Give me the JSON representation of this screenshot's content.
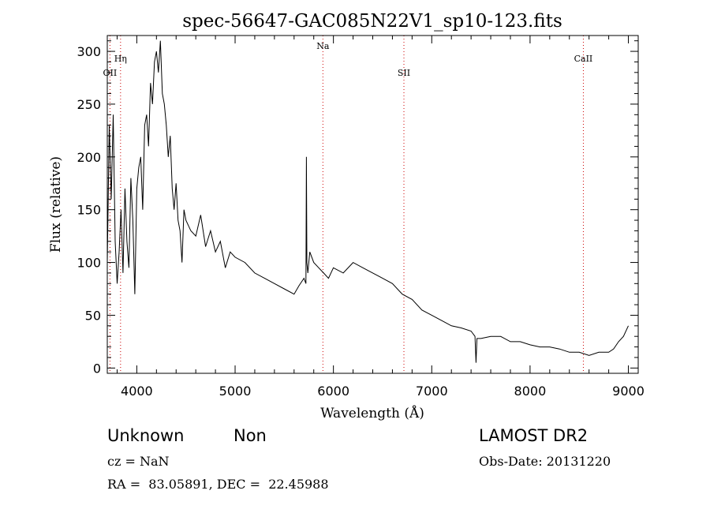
{
  "chart_data": {
    "type": "line",
    "title": "spec-56647-GAC085N22V1_sp10-123.fits",
    "xlabel": "Wavelength (Å)",
    "ylabel": "Flux (relative)",
    "xlim": [
      3700,
      9100
    ],
    "ylim": [
      -5,
      315
    ],
    "xticks": [
      4000,
      5000,
      6000,
      7000,
      8000,
      9000
    ],
    "yticks": [
      0,
      50,
      100,
      150,
      200,
      250,
      300
    ],
    "xtick_labels": [
      "4000",
      "5000",
      "6000",
      "7000",
      "8000",
      "9000"
    ],
    "ytick_labels": [
      "0",
      "50",
      "100",
      "150",
      "200",
      "250",
      "300"
    ],
    "grid": false,
    "line_color": "#000000",
    "marker_color": "#cc0000",
    "lines": [
      {
        "label": "OII",
        "wavelength": 3727
      },
      {
        "label": "Hη",
        "wavelength": 3835
      },
      {
        "label": "Na",
        "wavelength": 5893
      },
      {
        "label": "SII",
        "wavelength": 6717
      },
      {
        "label": "CaII",
        "wavelength": 8542
      }
    ],
    "series": [
      {
        "x": [
          3700,
          3720,
          3740,
          3760,
          3780,
          3800,
          3820,
          3840,
          3860,
          3880,
          3900,
          3920,
          3940,
          3960,
          3980,
          4000,
          4020,
          4040,
          4060,
          4080,
          4100,
          4120,
          4140,
          4160,
          4180,
          4200,
          4220,
          4240,
          4260,
          4280,
          4300,
          4320,
          4340,
          4360,
          4380,
          4400,
          4420,
          4440,
          4460,
          4480,
          4500,
          4550,
          4600,
          4650,
          4700,
          4750,
          4800,
          4850,
          4900,
          4950,
          5000,
          5100,
          5200,
          5300,
          5400,
          5500,
          5600,
          5650,
          5700,
          5720,
          5725,
          5730,
          5740,
          5760,
          5800,
          5850,
          5900,
          5950,
          6000,
          6100,
          6200,
          6300,
          6400,
          6500,
          6600,
          6700,
          6800,
          6900,
          7000,
          7100,
          7200,
          7300,
          7400,
          7440,
          7450,
          7460,
          7500,
          7600,
          7700,
          7800,
          7900,
          8000,
          8100,
          8200,
          8300,
          8400,
          8500,
          8600,
          8700,
          8800,
          8850,
          8900,
          8950,
          9000
        ],
        "y": [
          100,
          230,
          160,
          240,
          120,
          80,
          110,
          150,
          90,
          170,
          120,
          95,
          180,
          140,
          70,
          170,
          190,
          200,
          150,
          230,
          240,
          210,
          270,
          250,
          290,
          300,
          280,
          310,
          260,
          250,
          230,
          200,
          220,
          170,
          150,
          175,
          140,
          130,
          100,
          150,
          140,
          130,
          125,
          145,
          115,
          130,
          110,
          120,
          95,
          110,
          105,
          100,
          90,
          85,
          80,
          75,
          70,
          78,
          85,
          80,
          200,
          100,
          90,
          110,
          100,
          95,
          90,
          85,
          95,
          90,
          100,
          95,
          90,
          85,
          80,
          70,
          65,
          55,
          50,
          45,
          40,
          38,
          35,
          30,
          5,
          28,
          28,
          30,
          30,
          25,
          25,
          22,
          20,
          20,
          18,
          15,
          15,
          12,
          15,
          15,
          18,
          25,
          30,
          40
        ]
      }
    ]
  },
  "info": {
    "class": "Unknown",
    "subclass": "Non",
    "survey": "LAMOST DR2",
    "cz": "cz = NaN",
    "obs_date": "Obs-Date: 20131220",
    "coords": "RA =  83.05891, DEC =  22.45988"
  }
}
